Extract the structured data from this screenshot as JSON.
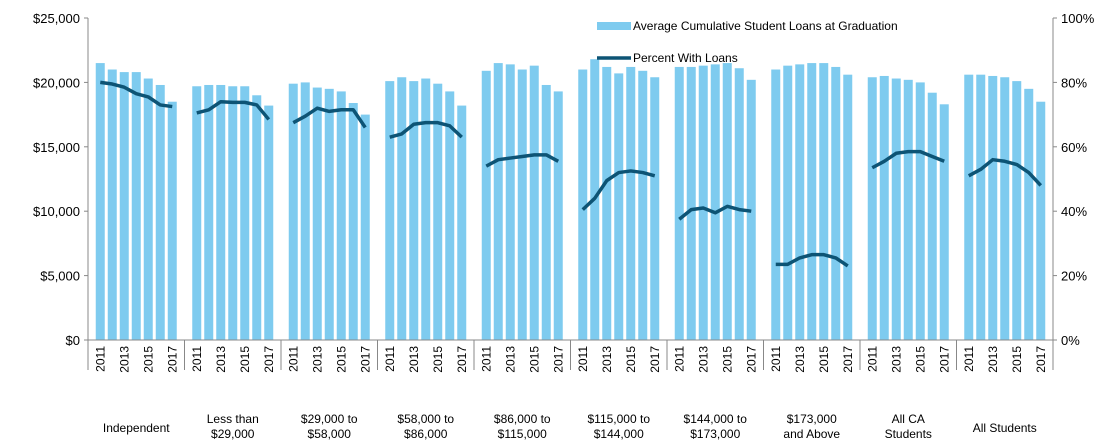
{
  "chart_data": {
    "type": "grouped-bar-line",
    "categories": [
      "2011",
      null,
      "2013",
      null,
      "2015",
      null,
      "2017"
    ],
    "groups": [
      [
        "Independent"
      ],
      [
        "Less than",
        "$29,000"
      ],
      [
        "$29,000 to",
        "$58,000"
      ],
      [
        "$58,000 to",
        "$86,000"
      ],
      [
        "$86,000 to",
        "$115,000"
      ],
      [
        "$115,000 to",
        "$144,000"
      ],
      [
        "$144,000 to",
        "$173,000"
      ],
      [
        "$173,000",
        "and Above"
      ],
      [
        "All CA",
        "Students"
      ],
      [
        "All Students"
      ]
    ],
    "series": [
      {
        "name": "Average Cumulative Student Loans at Graduation",
        "color": "#7ecbef",
        "type": "bar",
        "values": [
          [
            21500,
            21000,
            20800,
            20800,
            20300,
            19800,
            18500
          ],
          [
            19700,
            19800,
            19800,
            19700,
            19700,
            19000,
            18200
          ],
          [
            19900,
            20000,
            19600,
            19500,
            19300,
            18400,
            17500
          ],
          [
            20100,
            20400,
            20100,
            20300,
            19900,
            19300,
            18200
          ],
          [
            20900,
            21500,
            21400,
            21000,
            21300,
            19800,
            19300
          ],
          [
            21000,
            21800,
            21200,
            20700,
            21200,
            20900,
            20400
          ],
          [
            21200,
            21200,
            21300,
            21400,
            21500,
            21100,
            20200
          ],
          [
            21000,
            21300,
            21400,
            21500,
            21500,
            21200,
            20600
          ],
          [
            20400,
            20500,
            20300,
            20200,
            20000,
            19200,
            18300
          ],
          [
            20600,
            20600,
            20500,
            20400,
            20100,
            19500,
            18500
          ]
        ]
      },
      {
        "name": "Percent With Loans",
        "color": "#0d5475",
        "type": "line",
        "axis": "y2",
        "values": [
          [
            80,
            79.5,
            78.5,
            76.5,
            75.5,
            73,
            72.5
          ],
          [
            70.5,
            71.5,
            74,
            73.8,
            73.8,
            73,
            68.5
          ],
          [
            67.5,
            69.5,
            72,
            71,
            71.5,
            71.5,
            66
          ],
          [
            63,
            64,
            67,
            67.5,
            67.5,
            66.5,
            63
          ],
          [
            54,
            56,
            56.5,
            57,
            57.5,
            57.5,
            55.5
          ],
          [
            40.5,
            44,
            49.5,
            52,
            52.5,
            52,
            51
          ],
          [
            37.5,
            40.5,
            41,
            39.5,
            41.5,
            40.5,
            40
          ],
          [
            23.5,
            23.5,
            25.5,
            26.5,
            26.5,
            25.5,
            23
          ],
          [
            53.5,
            55.5,
            58,
            58.5,
            58.5,
            57,
            55.5
          ],
          [
            51,
            53,
            56,
            55.5,
            54.5,
            52,
            48
          ]
        ]
      }
    ],
    "ylim": [
      0,
      25000
    ],
    "yticks": [
      {
        "value": 0,
        "label": "$0"
      },
      {
        "value": 5000,
        "label": "$5,000"
      },
      {
        "value": 10000,
        "label": "$10,000"
      },
      {
        "value": 15000,
        "label": "$15,000"
      },
      {
        "value": 20000,
        "label": "$20,000"
      },
      {
        "value": 25000,
        "label": "$25,000"
      }
    ],
    "y2lim": [
      0,
      100
    ],
    "y2ticks": [
      {
        "value": 0,
        "label": "0%"
      },
      {
        "value": 20,
        "label": "20%"
      },
      {
        "value": 40,
        "label": "40%"
      },
      {
        "value": 60,
        "label": "60%"
      },
      {
        "value": 80,
        "label": "80%"
      },
      {
        "value": 100,
        "label": "100%"
      }
    ],
    "legend": "top-right"
  }
}
